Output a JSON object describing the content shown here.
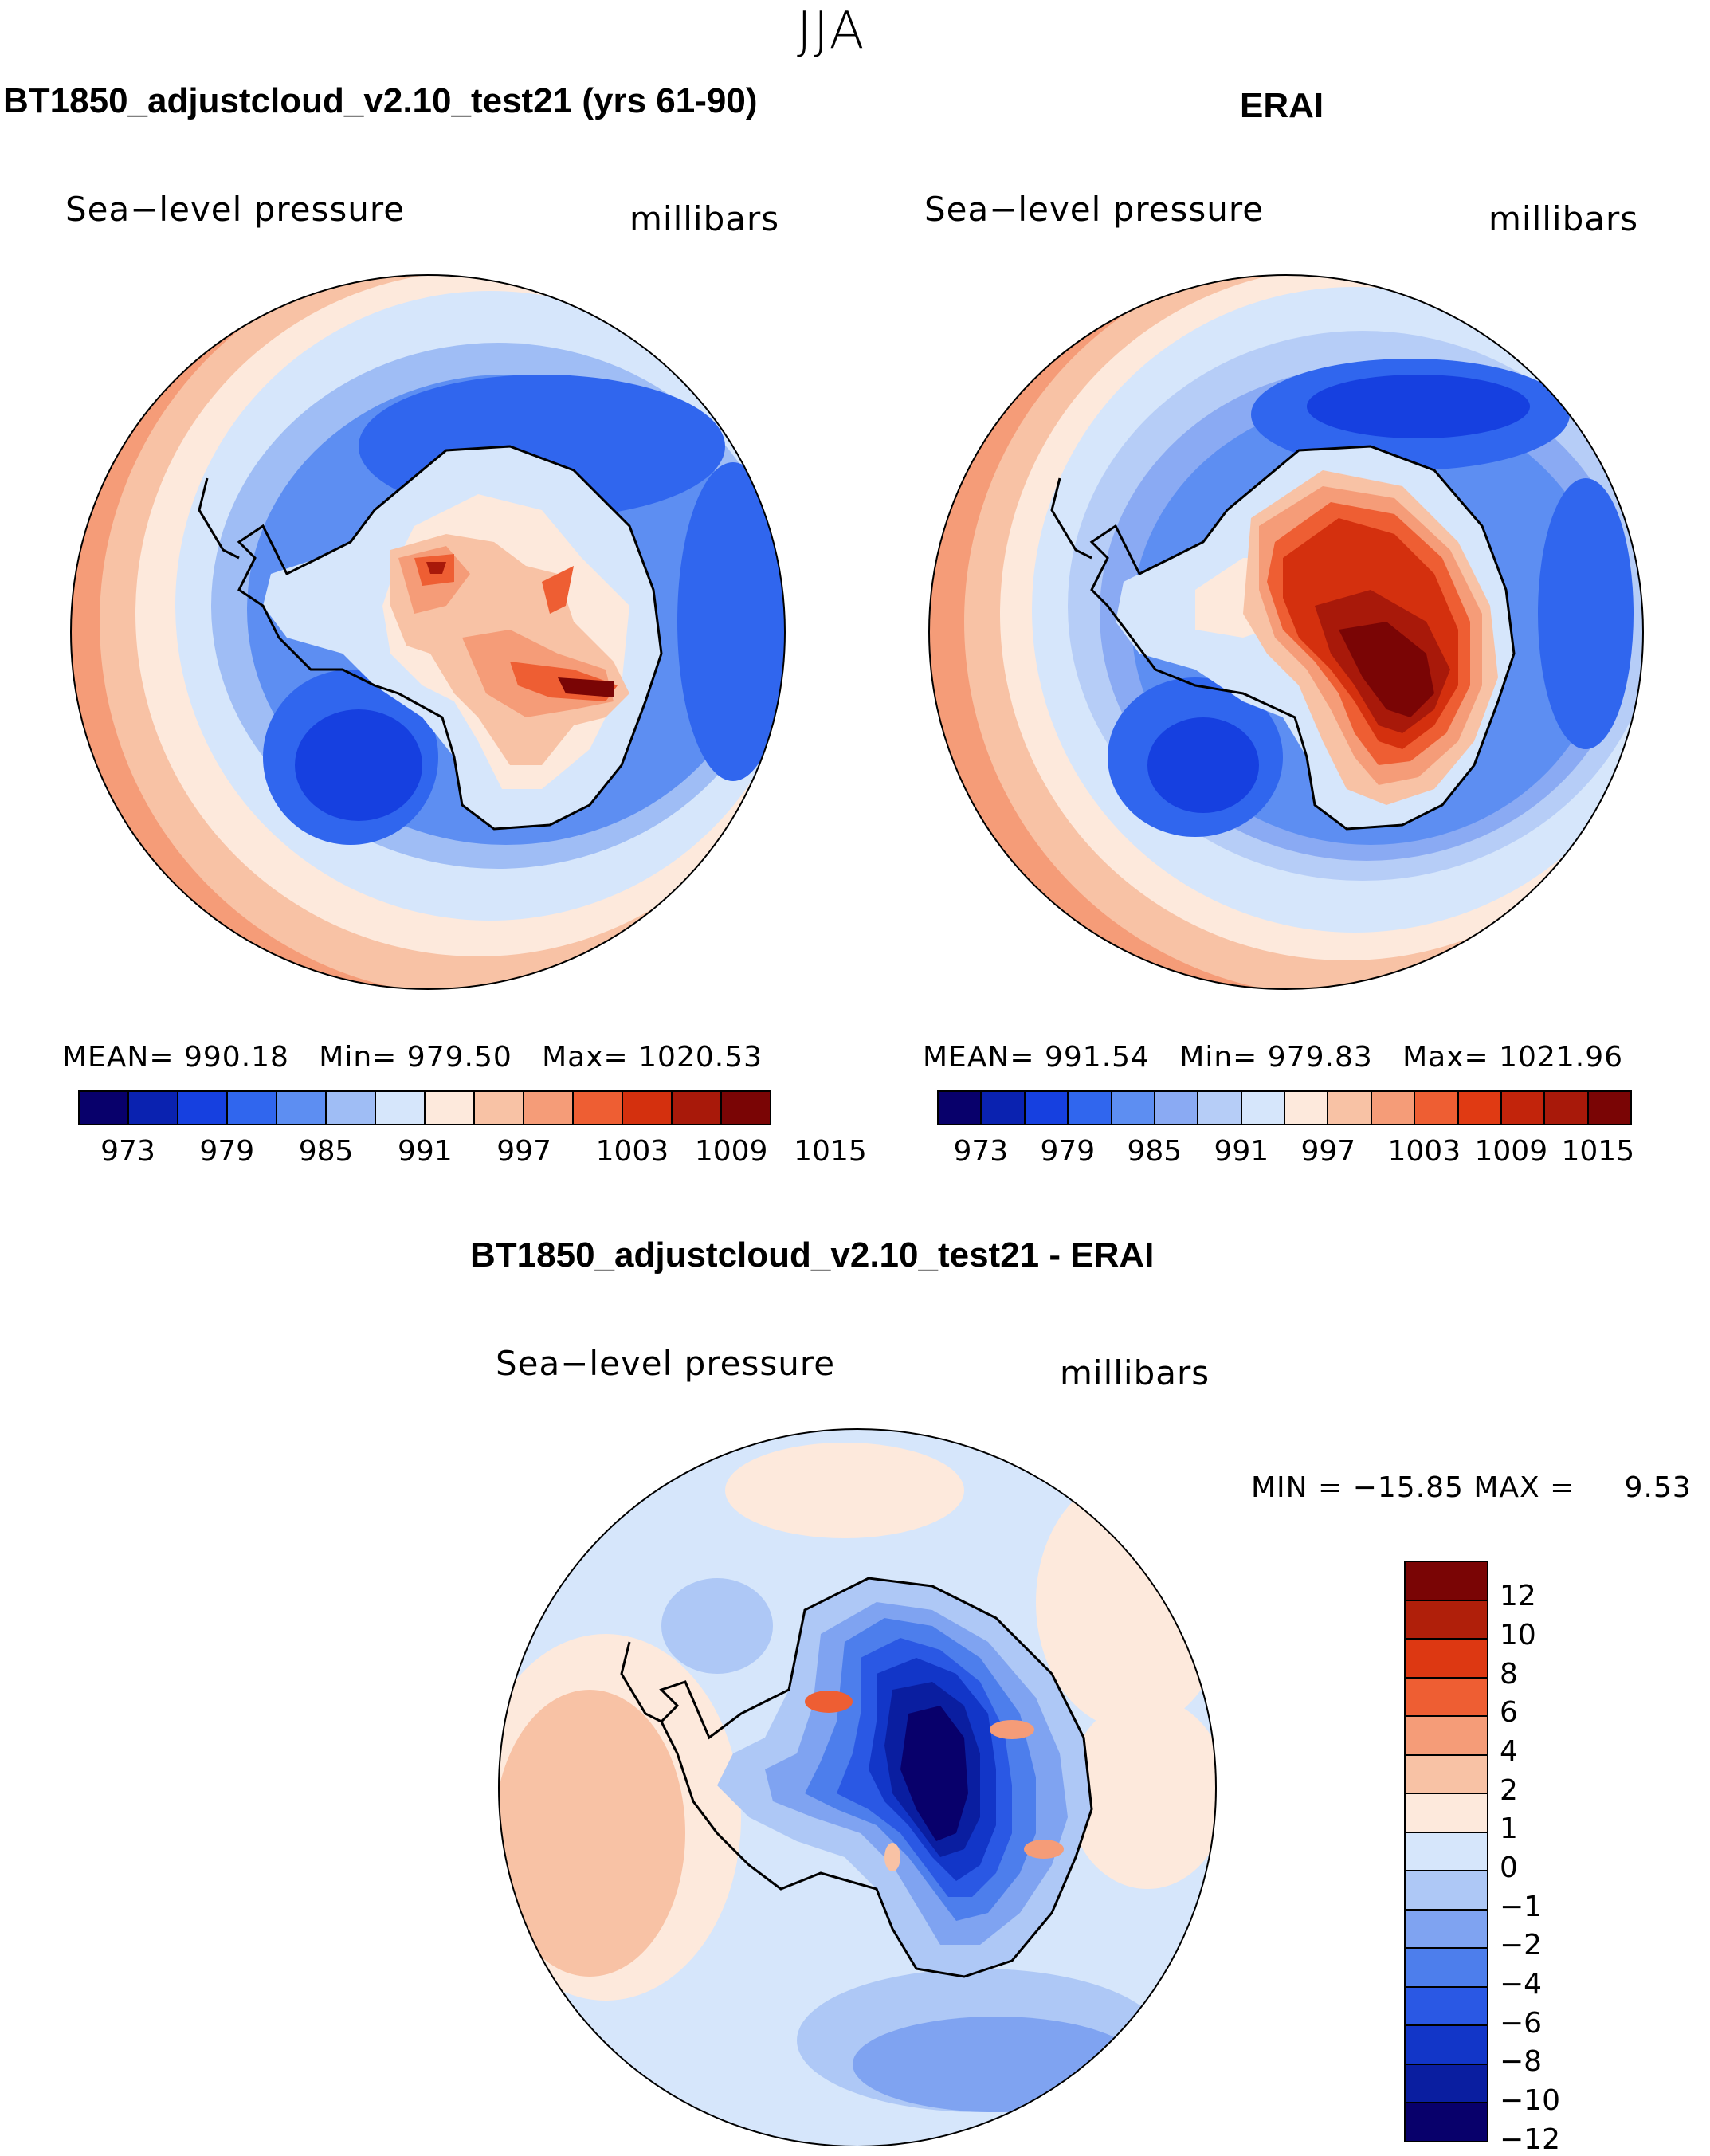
{
  "figure": {
    "season": "JJA"
  },
  "panels": [
    {
      "title": "BT1850_adjustcloud_v2.10_test21 (yrs 61-90)",
      "variable": "Sea−level pressure",
      "units": "millibars",
      "stats": {
        "mean_label": "MEAN=",
        "mean": "990.18",
        "min_label": "Min=",
        "min": "979.50",
        "max_label": "Max=",
        "max": "1020.53"
      }
    },
    {
      "title": "ERAI",
      "variable": "Sea−level pressure",
      "units": "millibars",
      "stats": {
        "mean_label": "MEAN=",
        "mean": "991.54",
        "min_label": "Min=",
        "min": "979.83",
        "max_label": "Max=",
        "max": "1021.96"
      }
    },
    {
      "title": "BT1850_adjustcloud_v2.10_test21 - ERAI",
      "variable": "Sea−level pressure",
      "units": "millibars",
      "stats": {
        "min_label": "MIN =",
        "min": "−15.85",
        "max_label": "MAX =",
        "max": "9.53"
      }
    }
  ],
  "colorbar_abs": {
    "ticks": [
      "973",
      "979",
      "985",
      "991",
      "997",
      "1003",
      "1009",
      "1015"
    ],
    "colors_left": [
      "#08006b",
      "#0a22b0",
      "#1640e0",
      "#3066ee",
      "#5d8ef2",
      "#9fbdf5",
      "#d6e6fb",
      "#fde9dc",
      "#f8c2a5",
      "#f59c78",
      "#ee5e33",
      "#d4300e",
      "#a8190a",
      "#7a0505"
    ],
    "colors_right": [
      "#08006b",
      "#0a22b0",
      "#1640e0",
      "#3066ee",
      "#5d8ef2",
      "#8aaaf3",
      "#b6cdf7",
      "#d6e6fb",
      "#fde9dc",
      "#f8c2a5",
      "#f59c78",
      "#ee5e33",
      "#e03a13",
      "#c2240b",
      "#a8190a",
      "#7a0505"
    ]
  },
  "colorbar_diff": {
    "ticks": [
      "12",
      "10",
      "8",
      "6",
      "4",
      "2",
      "1",
      "0",
      "−1",
      "−2",
      "−4",
      "−6",
      "−8",
      "−10",
      "−12"
    ],
    "colors": [
      "#7a0505",
      "#b01f0a",
      "#dd3812",
      "#ee5e33",
      "#f59c78",
      "#f8c2a5",
      "#fde9dc",
      "#d6e6fb",
      "#aec8f6",
      "#7fa3f1",
      "#4d7eec",
      "#2a58e4",
      "#1236c8",
      "#0a1ea0",
      "#08006b"
    ]
  },
  "chart_data": [
    {
      "type": "heatmap",
      "title": "BT1850_adjustcloud_v2.10_test21 (yrs 61-90)",
      "variable": "Sea−level pressure",
      "units": "millibars",
      "projection": "south polar stereographic",
      "contour_levels": [
        970,
        973,
        976,
        979,
        982,
        985,
        988,
        991,
        994,
        997,
        1000,
        1003,
        1006,
        1009,
        1012,
        1015
      ],
      "mean": 990.18,
      "min": 979.5,
      "max": 1020.53
    },
    {
      "type": "heatmap",
      "title": "ERAI",
      "variable": "Sea−level pressure",
      "units": "millibars",
      "projection": "south polar stereographic",
      "contour_levels": [
        970,
        973,
        976,
        979,
        982,
        985,
        988,
        991,
        994,
        997,
        1000,
        1003,
        1006,
        1009,
        1012,
        1015
      ],
      "mean": 991.54,
      "min": 979.83,
      "max": 1021.96
    },
    {
      "type": "heatmap",
      "title": "BT1850_adjustcloud_v2.10_test21 - ERAI",
      "variable": "Sea−level pressure",
      "units": "millibars",
      "projection": "south polar stereographic",
      "contour_levels": [
        -12,
        -10,
        -8,
        -6,
        -4,
        -2,
        -1,
        0,
        1,
        2,
        4,
        6,
        8,
        10,
        12
      ],
      "min": -15.85,
      "max": 9.53
    }
  ]
}
